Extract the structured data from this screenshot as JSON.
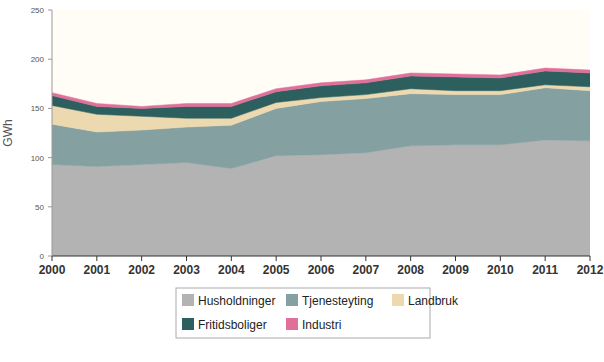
{
  "chart_data": {
    "type": "area",
    "stacked": true,
    "grid": false,
    "legend": "bottom",
    "y_label": "GWh",
    "categories": [
      "2000",
      "2001",
      "2002",
      "2003",
      "2004",
      "2005",
      "2006",
      "2007",
      "2008",
      "2009",
      "2010",
      "2011",
      "2012"
    ],
    "ylim": [
      0,
      250
    ],
    "yticks": [
      0,
      50,
      100,
      150,
      200,
      250
    ],
    "series": [
      {
        "name": "Husholdninger",
        "color": "#b3b3b3",
        "values": [
          93,
          91,
          93,
          95,
          89,
          102,
          103,
          105,
          112,
          113,
          113,
          118,
          117
        ]
      },
      {
        "name": "Tjenesteyting",
        "color": "#84a0a0",
        "values": [
          41,
          35,
          35,
          36,
          44,
          48,
          54,
          55,
          53,
          51,
          51,
          53,
          51
        ]
      },
      {
        "name": "Landbruk",
        "color": "#ecd9b0",
        "values": [
          19,
          18,
          14,
          9,
          7,
          6,
          4,
          4,
          5,
          4,
          4,
          3,
          4
        ]
      },
      {
        "name": "Fritidsboliger",
        "color": "#2e5f5f",
        "values": [
          10,
          8,
          8,
          12,
          12,
          11,
          12,
          12,
          13,
          14,
          13,
          14,
          14
        ]
      },
      {
        "name": "Industri",
        "color": "#e0709a",
        "values": [
          3,
          3,
          2,
          3,
          3,
          3,
          3,
          3,
          3,
          3,
          3,
          3,
          3
        ]
      }
    ]
  }
}
